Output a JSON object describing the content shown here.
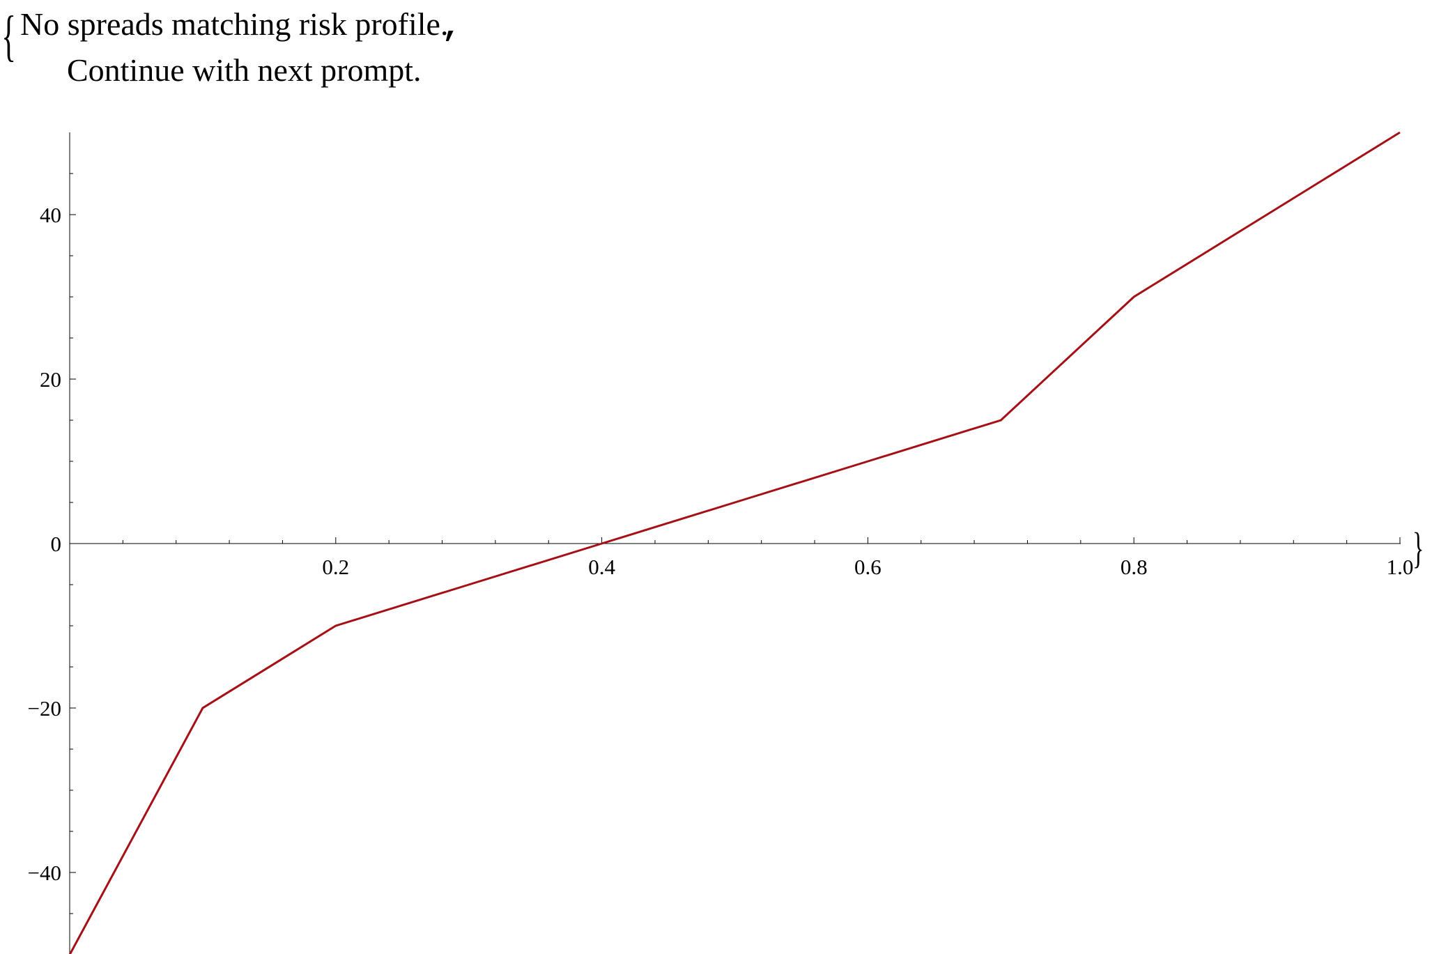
{
  "message": {
    "line1": "No spreads matching risk profile.",
    "line2": "Continue with next prompt.",
    "separator": ","
  },
  "brackets": {
    "open": "{",
    "close": "}"
  },
  "chart_data": {
    "type": "line",
    "title": "",
    "xlabel": "",
    "ylabel": "",
    "xlim": [
      0.0,
      1.0
    ],
    "ylim": [
      -50,
      50
    ],
    "x_ticks": [
      0.2,
      0.4,
      0.6,
      0.8,
      1.0
    ],
    "x_tick_labels": [
      "0.2",
      "0.4",
      "0.6",
      "0.8",
      "1.0"
    ],
    "y_ticks": [
      -40,
      -20,
      0,
      20,
      40
    ],
    "y_tick_labels": [
      "−40",
      "−20",
      "0",
      "20",
      "40"
    ],
    "grid": false,
    "legend": "none",
    "line_color": "#a50f15",
    "series": [
      {
        "x": [
          0.0,
          0.1,
          0.2,
          0.3,
          0.4,
          0.5,
          0.6,
          0.7,
          0.8,
          0.9,
          1.0
        ],
        "y": [
          -50,
          -20,
          -10,
          -5,
          0,
          5,
          10,
          15,
          30,
          40,
          50
        ]
      }
    ]
  }
}
